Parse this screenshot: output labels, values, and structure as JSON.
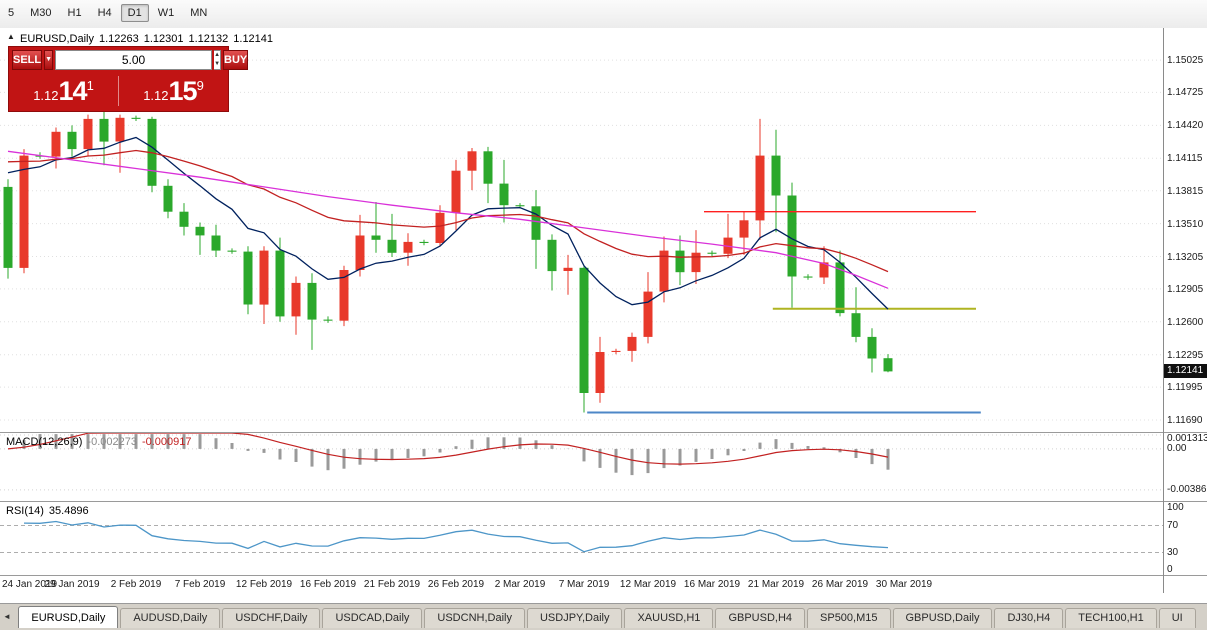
{
  "toolbar": {
    "timeframes": [
      {
        "label": "5",
        "active": false
      },
      {
        "label": "M30",
        "active": false
      },
      {
        "label": "H1",
        "active": false
      },
      {
        "label": "H4",
        "active": false
      },
      {
        "label": "D1",
        "active": true
      },
      {
        "label": "W1",
        "active": false
      },
      {
        "label": "MN",
        "active": false
      }
    ]
  },
  "window": {
    "title_symbol": "EURUSD,Daily",
    "ohlc": {
      "open": "1.12263",
      "high": "1.12301",
      "low": "1.12132",
      "close": "1.12141"
    }
  },
  "trade_panel": {
    "sell_label": "SELL",
    "buy_label": "BUY",
    "volume": "5.00",
    "bid": {
      "prefix": "1.12",
      "big": "14",
      "pip": "1"
    },
    "ask": {
      "prefix": "1.12",
      "big": "15",
      "pip": "9"
    }
  },
  "chart_data": {
    "type": "candlestick",
    "symbol": "EURUSD",
    "timeframe": "Daily",
    "note": "red candles = bullish, green candles = bearish in this color scheme",
    "axes": {
      "price_top": 1.15322,
      "price_bottom": 1.11579,
      "price_ticks": [
        1.15025,
        1.14725,
        1.1442,
        1.14115,
        1.13815,
        1.1351,
        1.13205,
        1.12905,
        1.126,
        1.12295,
        1.11995,
        1.1169
      ],
      "time_ticks": [
        "24 Jan 2019",
        "29 Jan 2019",
        "2 Feb 2019",
        "7 Feb 2019",
        "12 Feb 2019",
        "16 Feb 2019",
        "21 Feb 2019",
        "26 Feb 2019",
        "2 Mar 2019",
        "7 Mar 2019",
        "12 Mar 2019",
        "16 Mar 2019",
        "21 Mar 2019",
        "26 Mar 2019",
        "30 Mar 2019"
      ]
    },
    "current": {
      "price": 1.12141,
      "label": "1.12141"
    },
    "colors": {
      "up": "#E8392B",
      "down": "#2BA82B",
      "grid": "#E0E0E0"
    },
    "candles": [
      {
        "d": "24 Jan",
        "o": 1.1385,
        "h": 1.1392,
        "l": 1.13,
        "c": 1.131
      },
      {
        "d": "25 Jan",
        "o": 1.131,
        "h": 1.142,
        "l": 1.1305,
        "c": 1.1414
      },
      {
        "d": "26 Jan",
        "o": 1.1414,
        "h": 1.1417,
        "l": 1.1411,
        "c": 1.1413
      },
      {
        "d": "28 Jan",
        "o": 1.1413,
        "h": 1.144,
        "l": 1.1402,
        "c": 1.1436
      },
      {
        "d": "29 Jan",
        "o": 1.1436,
        "h": 1.1442,
        "l": 1.1413,
        "c": 1.142
      },
      {
        "d": "30 Jan",
        "o": 1.142,
        "h": 1.1452,
        "l": 1.1414,
        "c": 1.1448
      },
      {
        "d": "31 Jan",
        "o": 1.1448,
        "h": 1.1455,
        "l": 1.1405,
        "c": 1.1427
      },
      {
        "d": "1 Feb",
        "o": 1.1427,
        "h": 1.1452,
        "l": 1.1398,
        "c": 1.1449
      },
      {
        "d": "2 Feb",
        "o": 1.1449,
        "h": 1.1451,
        "l": 1.1446,
        "c": 1.1448
      },
      {
        "d": "4 Feb",
        "o": 1.1448,
        "h": 1.145,
        "l": 1.138,
        "c": 1.1386
      },
      {
        "d": "5 Feb",
        "o": 1.1386,
        "h": 1.1392,
        "l": 1.1356,
        "c": 1.1362
      },
      {
        "d": "6 Feb",
        "o": 1.1362,
        "h": 1.137,
        "l": 1.134,
        "c": 1.1348
      },
      {
        "d": "7 Feb",
        "o": 1.1348,
        "h": 1.1352,
        "l": 1.1322,
        "c": 1.134
      },
      {
        "d": "8 Feb",
        "o": 1.134,
        "h": 1.135,
        "l": 1.132,
        "c": 1.1326
      },
      {
        "d": "9 Feb",
        "o": 1.1326,
        "h": 1.1328,
        "l": 1.1323,
        "c": 1.1325
      },
      {
        "d": "11 Feb",
        "o": 1.1325,
        "h": 1.133,
        "l": 1.1267,
        "c": 1.1276
      },
      {
        "d": "12 Feb",
        "o": 1.1276,
        "h": 1.133,
        "l": 1.1258,
        "c": 1.1326
      },
      {
        "d": "13 Feb",
        "o": 1.1326,
        "h": 1.1338,
        "l": 1.126,
        "c": 1.1265
      },
      {
        "d": "14 Feb",
        "o": 1.1265,
        "h": 1.1302,
        "l": 1.1248,
        "c": 1.1296
      },
      {
        "d": "15 Feb",
        "o": 1.1296,
        "h": 1.1305,
        "l": 1.1234,
        "c": 1.1262
      },
      {
        "d": "16 Feb",
        "o": 1.1262,
        "h": 1.1265,
        "l": 1.1259,
        "c": 1.1261
      },
      {
        "d": "18 Feb",
        "o": 1.1261,
        "h": 1.1312,
        "l": 1.1256,
        "c": 1.1308
      },
      {
        "d": "19 Feb",
        "o": 1.1308,
        "h": 1.1359,
        "l": 1.1302,
        "c": 1.134
      },
      {
        "d": "20 Feb",
        "o": 1.134,
        "h": 1.1371,
        "l": 1.1324,
        "c": 1.1336
      },
      {
        "d": "21 Feb",
        "o": 1.1336,
        "h": 1.136,
        "l": 1.132,
        "c": 1.1324
      },
      {
        "d": "22 Feb",
        "o": 1.1324,
        "h": 1.1342,
        "l": 1.1312,
        "c": 1.1334
      },
      {
        "d": "23 Feb",
        "o": 1.1334,
        "h": 1.1336,
        "l": 1.1331,
        "c": 1.1333
      },
      {
        "d": "25 Feb",
        "o": 1.1333,
        "h": 1.1368,
        "l": 1.133,
        "c": 1.1361
      },
      {
        "d": "26 Feb",
        "o": 1.1361,
        "h": 1.141,
        "l": 1.1345,
        "c": 1.14
      },
      {
        "d": "27 Feb",
        "o": 1.14,
        "h": 1.1421,
        "l": 1.1382,
        "c": 1.1418
      },
      {
        "d": "28 Feb",
        "o": 1.1418,
        "h": 1.1422,
        "l": 1.137,
        "c": 1.1388
      },
      {
        "d": "1 Mar",
        "o": 1.1388,
        "h": 1.141,
        "l": 1.1352,
        "c": 1.1368
      },
      {
        "d": "2 Mar",
        "o": 1.1368,
        "h": 1.137,
        "l": 1.1365,
        "c": 1.1367
      },
      {
        "d": "4 Mar",
        "o": 1.1367,
        "h": 1.1382,
        "l": 1.1309,
        "c": 1.1336
      },
      {
        "d": "5 Mar",
        "o": 1.1336,
        "h": 1.1341,
        "l": 1.1289,
        "c": 1.1307
      },
      {
        "d": "6 Mar",
        "o": 1.1307,
        "h": 1.1322,
        "l": 1.1285,
        "c": 1.131
      },
      {
        "d": "7 Mar",
        "o": 1.131,
        "h": 1.1312,
        "l": 1.1176,
        "c": 1.1194
      },
      {
        "d": "8 Mar",
        "o": 1.1194,
        "h": 1.1246,
        "l": 1.1185,
        "c": 1.1232
      },
      {
        "d": "9 Mar",
        "o": 1.1232,
        "h": 1.1235,
        "l": 1.123,
        "c": 1.1233
      },
      {
        "d": "11 Mar",
        "o": 1.1233,
        "h": 1.125,
        "l": 1.1223,
        "c": 1.1246
      },
      {
        "d": "12 Mar",
        "o": 1.1246,
        "h": 1.1306,
        "l": 1.124,
        "c": 1.1288
      },
      {
        "d": "13 Mar",
        "o": 1.1288,
        "h": 1.1339,
        "l": 1.1278,
        "c": 1.1326
      },
      {
        "d": "14 Mar",
        "o": 1.1326,
        "h": 1.134,
        "l": 1.1294,
        "c": 1.1306
      },
      {
        "d": "15 Mar",
        "o": 1.1306,
        "h": 1.1345,
        "l": 1.1295,
        "c": 1.1324
      },
      {
        "d": "16 Mar",
        "o": 1.1324,
        "h": 1.1326,
        "l": 1.1321,
        "c": 1.1323
      },
      {
        "d": "18 Mar",
        "o": 1.1323,
        "h": 1.136,
        "l": 1.1319,
        "c": 1.1338
      },
      {
        "d": "19 Mar",
        "o": 1.1338,
        "h": 1.1362,
        "l": 1.1322,
        "c": 1.1354
      },
      {
        "d": "20 Mar",
        "o": 1.1354,
        "h": 1.1448,
        "l": 1.1336,
        "c": 1.1414
      },
      {
        "d": "21 Mar",
        "o": 1.1414,
        "h": 1.1438,
        "l": 1.1343,
        "c": 1.1377
      },
      {
        "d": "22 Mar",
        "o": 1.1377,
        "h": 1.1389,
        "l": 1.1273,
        "c": 1.1302
      },
      {
        "d": "23 Mar",
        "o": 1.1302,
        "h": 1.1304,
        "l": 1.1299,
        "c": 1.1301
      },
      {
        "d": "25 Mar",
        "o": 1.1301,
        "h": 1.133,
        "l": 1.1295,
        "c": 1.1315
      },
      {
        "d": "26 Mar",
        "o": 1.1315,
        "h": 1.1326,
        "l": 1.1265,
        "c": 1.1268
      },
      {
        "d": "27 Mar",
        "o": 1.1268,
        "h": 1.1292,
        "l": 1.1241,
        "c": 1.1246
      },
      {
        "d": "28 Mar",
        "o": 1.1246,
        "h": 1.1254,
        "l": 1.1213,
        "c": 1.1226
      },
      {
        "d": "29 Mar",
        "o": 1.12263,
        "h": 1.12301,
        "l": 1.12132,
        "c": 1.12141
      }
    ],
    "moving_averages": [
      {
        "name": "ma-fast",
        "color": "#00215E",
        "period": 9,
        "seed": 1.142
      },
      {
        "name": "ma-slow",
        "color": "#C22121",
        "period": 30,
        "seed": 1.1415
      },
      {
        "name": "ma-long",
        "color": "#D931D9",
        "points": [
          [
            0,
            1.1418
          ],
          [
            4,
            1.141
          ],
          [
            8,
            1.1402
          ],
          [
            12,
            1.1394
          ],
          [
            16,
            1.1385
          ],
          [
            20,
            1.1376
          ],
          [
            24,
            1.1368
          ],
          [
            28,
            1.1361
          ],
          [
            32,
            1.1355
          ],
          [
            36,
            1.1347
          ],
          [
            40,
            1.1339
          ],
          [
            44,
            1.1332
          ],
          [
            48,
            1.1324
          ],
          [
            51,
            1.1314
          ],
          [
            53,
            1.1303
          ],
          [
            55,
            1.1291
          ]
        ]
      }
    ],
    "h_lines": [
      {
        "name": "resistance-line",
        "price": 1.1362,
        "from_bar": 43.5,
        "to_bar": 60.5,
        "color": "#FF1F1F",
        "width": 1.4
      },
      {
        "name": "mid-support-line",
        "price": 1.1272,
        "from_bar": 47.8,
        "to_bar": 60.5,
        "color": "#AFB421",
        "width": 2
      },
      {
        "name": "lower-support-line",
        "price": 1.1176,
        "from_bar": 36.2,
        "to_bar": 60.8,
        "color": "#4D87C7",
        "width": 2
      }
    ]
  },
  "indicators": {
    "macd": {
      "label": "MACD(12,26,9)",
      "value_main": "-0.002273",
      "value_signal": "-0.000917",
      "fast": 12,
      "slow": 26,
      "signal": 9,
      "scale_top": 0.0015,
      "scale_bottom": -0.005,
      "ticks": [
        {
          "v": 0.001313,
          "t": "0.001313"
        },
        {
          "v": 0,
          "t": "0.00"
        },
        {
          "v": -0.003862,
          "t": "-0.003862"
        }
      ],
      "hist_color": "#9A9A9A",
      "signal_color": "#C22121"
    },
    "rsi": {
      "label": "RSI(14)",
      "value": "35.4896",
      "period": 14,
      "ticks": [
        {
          "v": 100,
          "t": "100"
        },
        {
          "v": 70,
          "t": "70"
        },
        {
          "v": 30,
          "t": "30"
        },
        {
          "v": 0,
          "t": "0"
        }
      ],
      "dashed": [
        70,
        30
      ],
      "line_color": "#4D96C8"
    }
  },
  "bottom_tabs": {
    "items": [
      {
        "label": "EURUSD,Daily",
        "active": true
      },
      {
        "label": "AUDUSD,Daily",
        "active": false
      },
      {
        "label": "USDCHF,Daily",
        "active": false
      },
      {
        "label": "USDCAD,Daily",
        "active": false
      },
      {
        "label": "USDCNH,Daily",
        "active": false
      },
      {
        "label": "USDJPY,Daily",
        "active": false
      },
      {
        "label": "XAUUSD,H1",
        "active": false
      },
      {
        "label": "GBPUSD,H4",
        "active": false
      },
      {
        "label": "SP500,M15",
        "active": false
      },
      {
        "label": "GBPUSD,Daily",
        "active": false
      },
      {
        "label": "DJ30,H4",
        "active": false
      },
      {
        "label": "TECH100,H1",
        "active": false
      },
      {
        "label": "UI",
        "active": false
      }
    ]
  }
}
